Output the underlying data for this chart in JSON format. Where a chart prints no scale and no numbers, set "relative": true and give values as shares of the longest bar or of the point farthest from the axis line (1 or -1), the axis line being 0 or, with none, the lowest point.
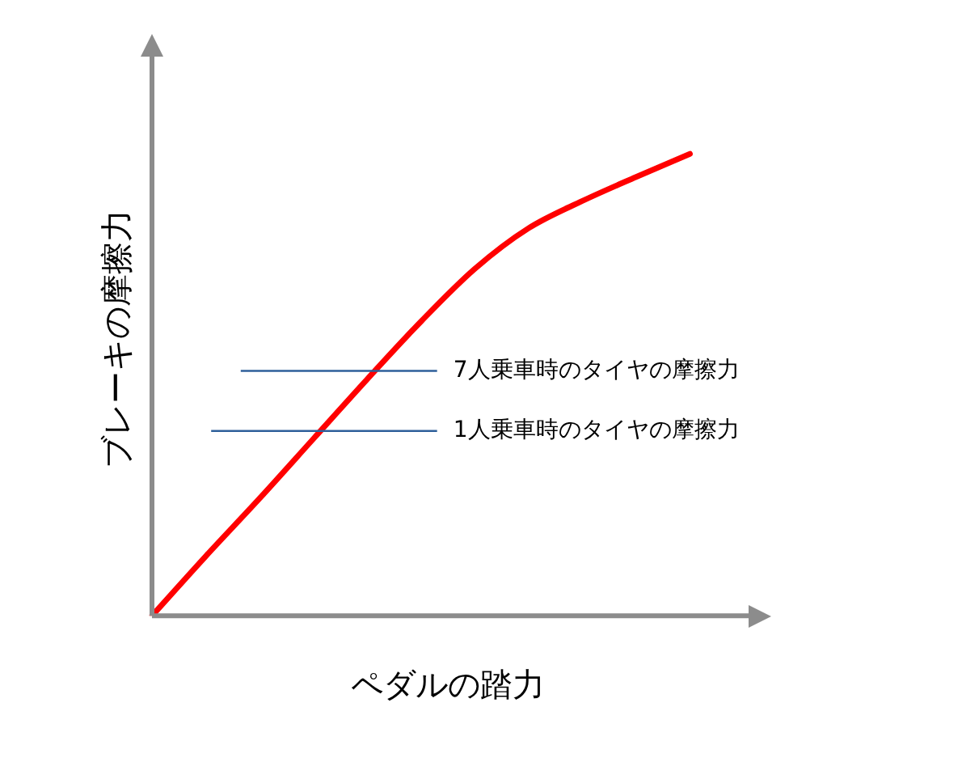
{
  "chart_data": {
    "type": "line",
    "relative": true,
    "xlabel": "ペダルの踏力",
    "ylabel": "ブレーキの摩擦力",
    "categories": [
      null,
      null,
      null,
      null,
      null,
      null,
      null,
      null,
      null,
      null,
      null,
      null
    ],
    "series": [
      {
        "color": "#ff0000",
        "values": [
          0,
          0.129,
          0.254,
          0.383,
          0.512,
          0.637,
          0.751,
          0.839,
          0.898,
          0.95,
          1.0,
          null
        ]
      }
    ],
    "ref_lines": [
      {
        "axis": "y",
        "value": 0.53,
        "label": "7人乗車時のタイヤの摩擦力",
        "color": "#2e5f9a"
      },
      {
        "axis": "y",
        "value": 0.4,
        "label": "1人乗車時のタイヤの摩擦力",
        "color": "#2e5f9a"
      }
    ],
    "grid": false,
    "legend": false,
    "marker": "none",
    "line_style": "solid"
  }
}
